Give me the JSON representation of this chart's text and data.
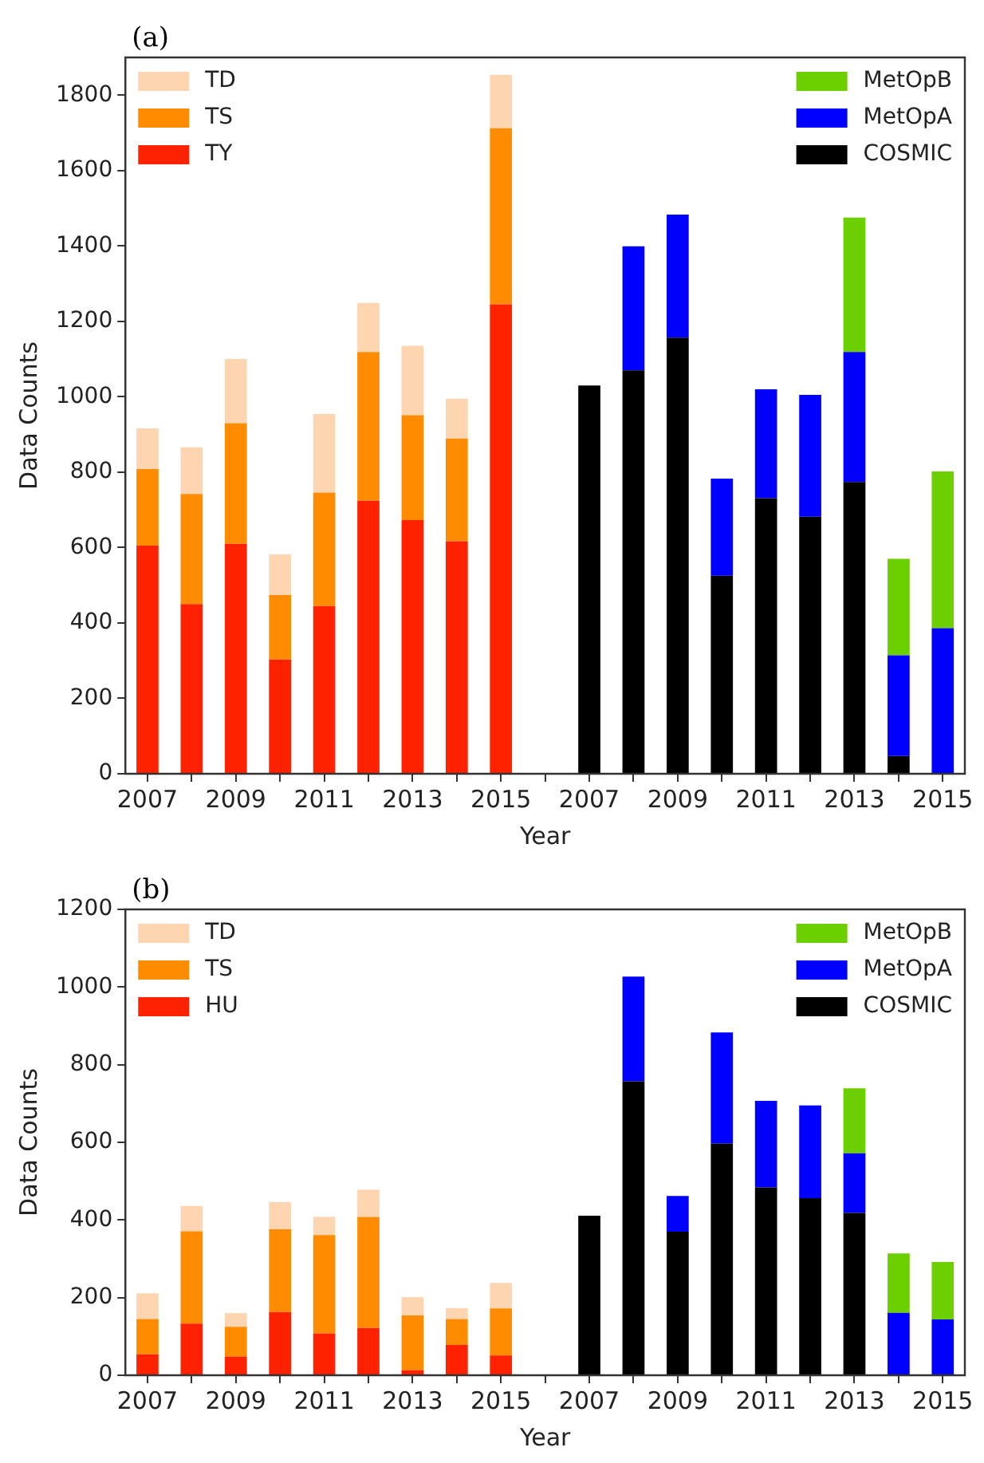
{
  "chart_data": [
    {
      "type": "bar",
      "title": "(a)",
      "xlabel": "Year",
      "ylabel": "Data Counts",
      "stacked": true,
      "grid": false,
      "legend": "top",
      "categories": [
        "2007",
        null,
        "2009",
        null,
        "2011",
        null,
        "2013",
        null,
        "2015",
        null,
        "2007",
        null,
        "2009",
        null,
        "2011",
        null,
        "2013",
        null,
        "2015"
      ],
      "ylim": [
        0,
        1900
      ],
      "yticks": [
        0,
        200,
        400,
        600,
        800,
        1000,
        1200,
        1400,
        1600,
        1800
      ],
      "series": [
        {
          "name": "TY",
          "color": "#ff2200",
          "values": [
            605,
            450,
            610,
            303,
            445,
            724,
            673,
            617,
            1245,
            null,
            null,
            null,
            null,
            null,
            null,
            null,
            null,
            null,
            null
          ]
        },
        {
          "name": "TS",
          "color": "#ff8c00",
          "values": [
            203,
            292,
            320,
            171,
            301,
            395,
            278,
            272,
            467,
            null,
            null,
            null,
            null,
            null,
            null,
            null,
            null,
            null,
            null
          ]
        },
        {
          "name": "TD",
          "color": "#fdd5b1",
          "values": [
            108,
            124,
            170,
            108,
            208,
            130,
            184,
            106,
            142,
            null,
            null,
            null,
            null,
            null,
            null,
            null,
            null,
            null,
            null
          ]
        },
        {
          "name": "COSMIC",
          "color": "#000000",
          "values": [
            null,
            null,
            null,
            null,
            null,
            null,
            null,
            null,
            null,
            null,
            1030,
            1070,
            1157,
            525,
            731,
            682,
            774,
            47,
            null
          ]
        },
        {
          "name": "MetOpA",
          "color": "#0000ff",
          "values": [
            null,
            null,
            null,
            null,
            null,
            null,
            null,
            null,
            null,
            null,
            null,
            329,
            326,
            258,
            289,
            323,
            345,
            267,
            386
          ]
        },
        {
          "name": "MetOpB",
          "color": "#6ccf00",
          "values": [
            null,
            null,
            null,
            null,
            null,
            null,
            null,
            null,
            null,
            null,
            null,
            null,
            null,
            null,
            null,
            null,
            356,
            256,
            416
          ]
        }
      ]
    },
    {
      "type": "bar",
      "title": "(b)",
      "xlabel": "Year",
      "ylabel": "Data Counts",
      "stacked": true,
      "grid": false,
      "legend": "top",
      "categories": [
        "2007",
        null,
        "2009",
        null,
        "2011",
        null,
        "2013",
        null,
        "2015",
        null,
        "2007",
        null,
        "2009",
        null,
        "2011",
        null,
        "2013",
        null,
        "2015"
      ],
      "ylim": [
        0,
        1200
      ],
      "yticks": [
        0,
        200,
        400,
        600,
        800,
        1000,
        1200
      ],
      "series": [
        {
          "name": "HU",
          "color": "#ff2200",
          "values": [
            54,
            133,
            48,
            163,
            108,
            122,
            13,
            78,
            51,
            null,
            null,
            null,
            null,
            null,
            null,
            null,
            null,
            null,
            null
          ]
        },
        {
          "name": "TS",
          "color": "#ff8c00",
          "values": [
            91,
            238,
            77,
            213,
            253,
            286,
            141,
            67,
            121,
            null,
            null,
            null,
            null,
            null,
            null,
            null,
            null,
            null,
            null
          ]
        },
        {
          "name": "TD",
          "color": "#fdd5b1",
          "values": [
            66,
            65,
            35,
            70,
            47,
            70,
            47,
            28,
            66,
            null,
            null,
            null,
            null,
            null,
            null,
            null,
            null,
            null,
            null
          ]
        },
        {
          "name": "COSMIC",
          "color": "#000000",
          "values": [
            null,
            null,
            null,
            null,
            null,
            null,
            null,
            null,
            null,
            null,
            411,
            757,
            370,
            597,
            484,
            456,
            418,
            null,
            null
          ]
        },
        {
          "name": "MetOpA",
          "color": "#0000ff",
          "values": [
            null,
            null,
            null,
            null,
            null,
            null,
            null,
            null,
            null,
            null,
            null,
            270,
            92,
            286,
            223,
            239,
            154,
            161,
            144
          ]
        },
        {
          "name": "MetOpB",
          "color": "#6ccf00",
          "values": [
            null,
            null,
            null,
            null,
            null,
            null,
            null,
            null,
            null,
            null,
            null,
            null,
            null,
            null,
            null,
            null,
            167,
            153,
            148
          ]
        }
      ]
    }
  ]
}
